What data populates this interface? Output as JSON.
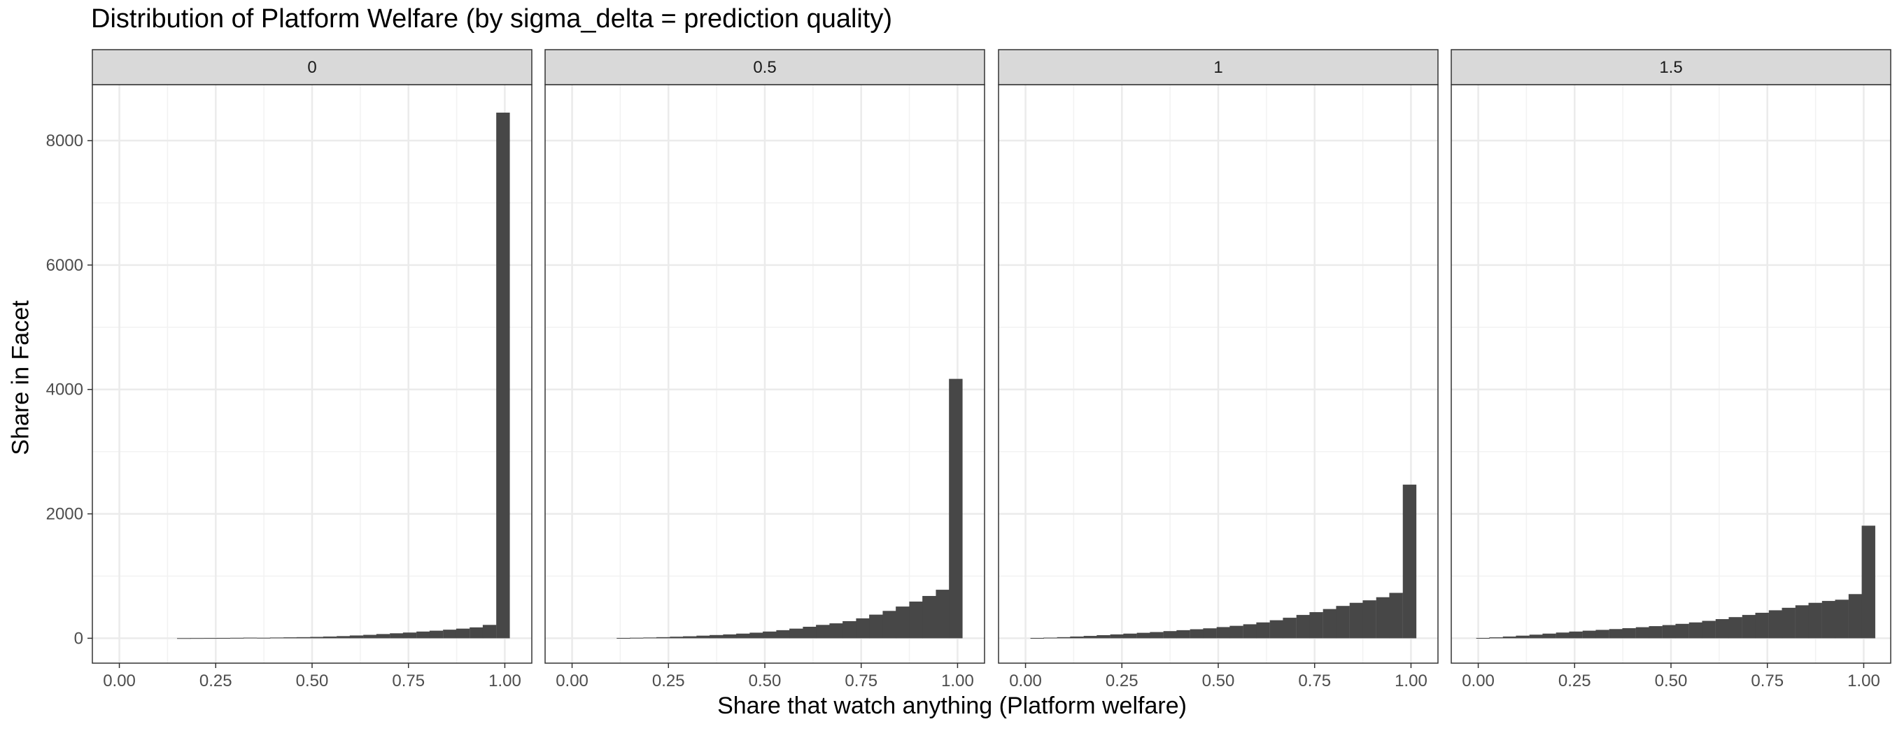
{
  "chart_data": {
    "type": "bar",
    "title": "Distribution of Platform Welfare (by sigma_delta = prediction quality)",
    "xlabel": "Share that watch anything (Platform welfare)",
    "ylabel": "Share in Facet",
    "xlim": [
      -0.07,
      1.07
    ],
    "ylim": [
      -400,
      8900
    ],
    "x_ticks": [
      "0.00",
      "0.25",
      "0.50",
      "0.75",
      "1.00"
    ],
    "x_tick_values": [
      0,
      0.25,
      0.5,
      0.75,
      1.0
    ],
    "y_ticks": [
      "0",
      "2000",
      "4000",
      "6000",
      "8000"
    ],
    "y_tick_values": [
      0,
      2000,
      4000,
      6000,
      8000
    ],
    "grid": true,
    "bin_width": 0.0345,
    "bar_color": "#474747",
    "facets": [
      {
        "label": "0",
        "bins": [
          [
            0.167,
            2
          ],
          [
            0.201,
            3
          ],
          [
            0.236,
            4
          ],
          [
            0.27,
            5
          ],
          [
            0.305,
            7
          ],
          [
            0.339,
            10
          ],
          [
            0.374,
            8
          ],
          [
            0.408,
            12
          ],
          [
            0.443,
            15
          ],
          [
            0.477,
            18
          ],
          [
            0.512,
            22
          ],
          [
            0.546,
            28
          ],
          [
            0.581,
            35
          ],
          [
            0.615,
            45
          ],
          [
            0.65,
            55
          ],
          [
            0.684,
            68
          ],
          [
            0.719,
            80
          ],
          [
            0.753,
            92
          ],
          [
            0.788,
            108
          ],
          [
            0.822,
            122
          ],
          [
            0.857,
            138
          ],
          [
            0.891,
            155
          ],
          [
            0.926,
            175
          ],
          [
            0.96,
            215
          ],
          [
            0.995,
            8450
          ]
        ]
      },
      {
        "label": "0.5",
        "bins": [
          [
            0.133,
            5
          ],
          [
            0.167,
            8
          ],
          [
            0.202,
            12
          ],
          [
            0.236,
            18
          ],
          [
            0.271,
            25
          ],
          [
            0.305,
            32
          ],
          [
            0.34,
            42
          ],
          [
            0.374,
            52
          ],
          [
            0.409,
            62
          ],
          [
            0.443,
            75
          ],
          [
            0.478,
            90
          ],
          [
            0.512,
            108
          ],
          [
            0.547,
            130
          ],
          [
            0.581,
            155
          ],
          [
            0.616,
            185
          ],
          [
            0.65,
            215
          ],
          [
            0.685,
            240
          ],
          [
            0.719,
            275
          ],
          [
            0.754,
            320
          ],
          [
            0.788,
            380
          ],
          [
            0.823,
            440
          ],
          [
            0.857,
            510
          ],
          [
            0.892,
            590
          ],
          [
            0.926,
            680
          ],
          [
            0.961,
            780
          ],
          [
            0.995,
            4170
          ]
        ]
      },
      {
        "label": "1",
        "bins": [
          [
            0.03,
            5
          ],
          [
            0.064,
            10
          ],
          [
            0.099,
            18
          ],
          [
            0.133,
            28
          ],
          [
            0.168,
            38
          ],
          [
            0.202,
            50
          ],
          [
            0.237,
            62
          ],
          [
            0.271,
            75
          ],
          [
            0.306,
            88
          ],
          [
            0.34,
            100
          ],
          [
            0.375,
            115
          ],
          [
            0.409,
            130
          ],
          [
            0.444,
            145
          ],
          [
            0.478,
            160
          ],
          [
            0.513,
            180
          ],
          [
            0.547,
            200
          ],
          [
            0.582,
            225
          ],
          [
            0.616,
            255
          ],
          [
            0.651,
            290
          ],
          [
            0.685,
            330
          ],
          [
            0.72,
            375
          ],
          [
            0.754,
            420
          ],
          [
            0.789,
            470
          ],
          [
            0.823,
            520
          ],
          [
            0.858,
            570
          ],
          [
            0.892,
            610
          ],
          [
            0.927,
            660
          ],
          [
            0.961,
            730
          ],
          [
            0.996,
            2470
          ]
        ]
      },
      {
        "label": "1.5",
        "bins": [
          [
            0.012,
            5
          ],
          [
            0.046,
            15
          ],
          [
            0.081,
            28
          ],
          [
            0.115,
            42
          ],
          [
            0.15,
            58
          ],
          [
            0.184,
            75
          ],
          [
            0.219,
            92
          ],
          [
            0.253,
            108
          ],
          [
            0.288,
            122
          ],
          [
            0.322,
            135
          ],
          [
            0.357,
            148
          ],
          [
            0.391,
            162
          ],
          [
            0.426,
            178
          ],
          [
            0.46,
            195
          ],
          [
            0.495,
            212
          ],
          [
            0.529,
            232
          ],
          [
            0.564,
            255
          ],
          [
            0.598,
            280
          ],
          [
            0.633,
            308
          ],
          [
            0.667,
            340
          ],
          [
            0.702,
            375
          ],
          [
            0.736,
            410
          ],
          [
            0.771,
            450
          ],
          [
            0.805,
            490
          ],
          [
            0.84,
            530
          ],
          [
            0.874,
            570
          ],
          [
            0.909,
            600
          ],
          [
            0.943,
            620
          ],
          [
            0.978,
            710
          ],
          [
            1.012,
            1810
          ]
        ]
      }
    ]
  }
}
